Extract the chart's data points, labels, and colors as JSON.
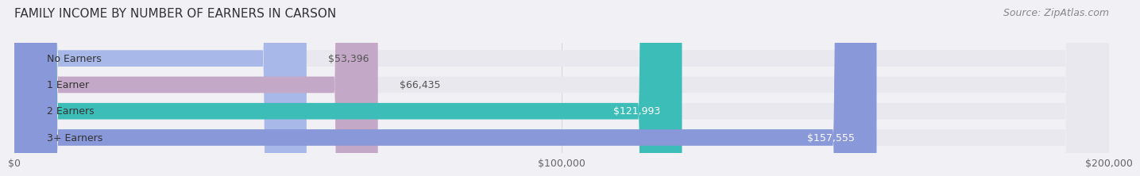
{
  "title": "FAMILY INCOME BY NUMBER OF EARNERS IN CARSON",
  "source": "Source: ZipAtlas.com",
  "categories": [
    "No Earners",
    "1 Earner",
    "2 Earners",
    "3+ Earners"
  ],
  "values": [
    53396,
    66435,
    121993,
    157555
  ],
  "labels": [
    "$53,396",
    "$66,435",
    "$121,993",
    "$157,555"
  ],
  "bar_colors": [
    "#a8b8e8",
    "#c4a8c8",
    "#3dbdb8",
    "#8898d8"
  ],
  "bar_bg_color": "#e8e8ee",
  "xlim": [
    0,
    200000
  ],
  "xticks": [
    0,
    100000,
    200000
  ],
  "xtick_labels": [
    "$0",
    "$100,000",
    "$200,000"
  ],
  "title_fontsize": 11,
  "source_fontsize": 9,
  "label_fontsize": 9,
  "category_fontsize": 9,
  "tick_fontsize": 9,
  "background_color": "#f0f0f5",
  "bar_bg_alpha": 1.0,
  "bar_height": 0.62,
  "label_white_threshold": 100000
}
